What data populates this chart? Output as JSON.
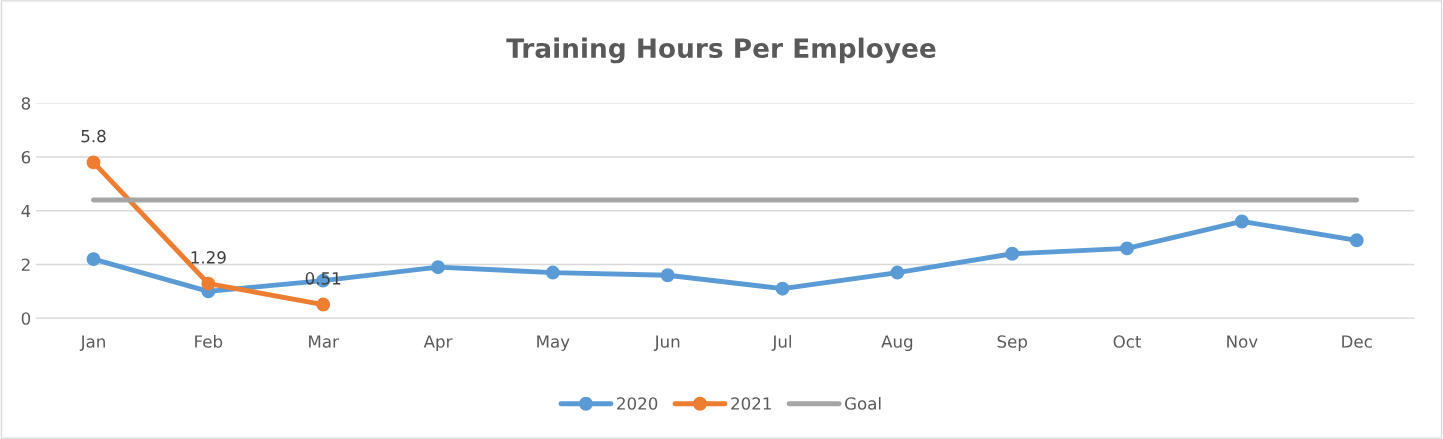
{
  "chart_data": {
    "type": "line",
    "title": "Training Hours Per Employee",
    "categories": [
      "Jan",
      "Feb",
      "Mar",
      "Apr",
      "May",
      "Jun",
      "Jul",
      "Aug",
      "Sep",
      "Oct",
      "Nov",
      "Dec"
    ],
    "series": [
      {
        "name": "2020",
        "color": "#5b9bd5",
        "marker": "circle",
        "values": [
          2.2,
          1.0,
          1.4,
          1.9,
          1.7,
          1.6,
          1.1,
          1.7,
          2.4,
          2.6,
          3.6,
          2.9
        ]
      },
      {
        "name": "2021",
        "color": "#ed7d31",
        "marker": "circle",
        "values": [
          5.8,
          1.29,
          0.51,
          null,
          null,
          null,
          null,
          null,
          null,
          null,
          null,
          null
        ],
        "value_labels": [
          "5.8",
          "1.29",
          "0.51",
          null,
          null,
          null,
          null,
          null,
          null,
          null,
          null,
          null
        ]
      },
      {
        "name": "Goal",
        "color": "#a5a5a5",
        "marker": "none",
        "values": [
          4.4,
          4.4,
          4.4,
          4.4,
          4.4,
          4.4,
          4.4,
          4.4,
          4.4,
          4.4,
          4.4,
          4.4
        ]
      }
    ],
    "ylim": [
      0,
      8
    ],
    "yticks": [
      0,
      2,
      4,
      6,
      8
    ],
    "grid": "y",
    "legend": "bottom"
  }
}
